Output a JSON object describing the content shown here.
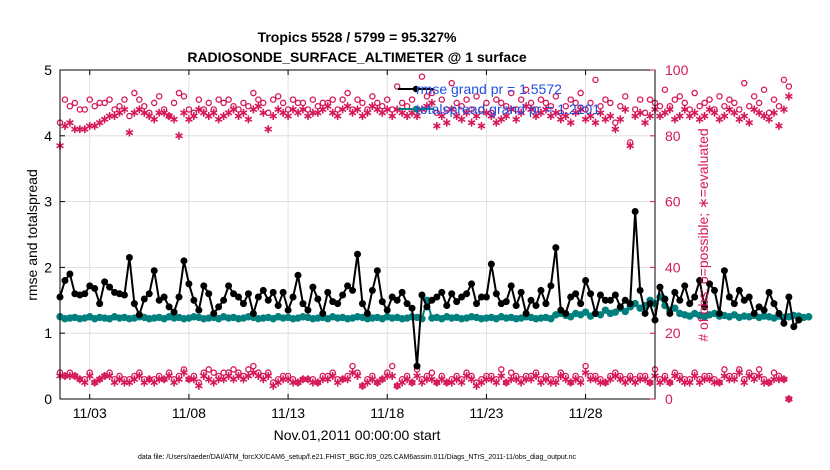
{
  "chart_data": {
    "type": "line",
    "title": "Tropics 5528 / 5799 = 95.327%",
    "subtitle": "RADIOSONDE_SURFACE_ALTIMETER @ 1 surface",
    "xlabel": "Nov.01,2011 00:00:00 start",
    "ylabel_left": "rmse and totalspread",
    "ylabel_right": "# of obs: o=possible; ∗=evaluated",
    "footer": "data file: /Users/raeder/DAI/ATM_forcXX/CAM6_setup/f.e21.FHIST_BGC.f09_025.CAM6assim.011/Diags_NTrS_2011-11/obs_diag_output.nc",
    "xlim": [
      1.0,
      31.0
    ],
    "ylim_left": [
      0,
      5
    ],
    "ylim_right": [
      0,
      100
    ],
    "x_ticks": [
      2.5,
      7.5,
      12.5,
      17.5,
      22.5,
      27.5
    ],
    "x_tick_labels": [
      "11/03",
      "11/08",
      "11/13",
      "11/18",
      "11/23",
      "11/28"
    ],
    "y_left_ticks": [
      "0",
      "1",
      "2",
      "3",
      "4",
      "5"
    ],
    "y_right_ticks": [
      "0",
      "20",
      "40",
      "60",
      "80",
      "100"
    ],
    "colors": {
      "rmse": "#000000",
      "spread": "#00807f",
      "obs": "#d6185a",
      "legend_text": "#1f4fe0"
    },
    "legend": [
      {
        "name": "rmse grand pr = 1.5572",
        "color": "#000000"
      },
      {
        "name": "totalspread grand pr = 1.2201",
        "color": "#00807f"
      }
    ],
    "series": [
      {
        "name": "rmse",
        "axis": "left",
        "x_start": 1.0,
        "x_step": 0.25,
        "values": [
          1.55,
          1.8,
          1.9,
          1.6,
          1.58,
          1.6,
          1.72,
          1.68,
          1.45,
          1.78,
          1.7,
          1.62,
          1.6,
          1.58,
          2.15,
          1.45,
          1.28,
          1.52,
          1.6,
          1.95,
          1.5,
          1.55,
          1.4,
          1.32,
          1.55,
          2.1,
          1.75,
          1.5,
          1.35,
          1.72,
          1.6,
          1.3,
          1.4,
          1.5,
          1.72,
          1.6,
          1.55,
          1.45,
          1.6,
          1.3,
          1.55,
          1.65,
          1.5,
          1.62,
          1.42,
          1.62,
          1.35,
          1.55,
          1.88,
          1.45,
          1.35,
          1.7,
          1.52,
          1.3,
          1.62,
          1.48,
          1.45,
          1.58,
          1.72,
          1.65,
          2.2,
          1.45,
          1.3,
          1.65,
          1.95,
          1.48,
          1.35,
          1.55,
          1.5,
          1.62,
          1.45,
          1.38,
          0.5,
          1.58,
          1.4,
          1.5,
          1.55,
          1.62,
          1.42,
          1.6,
          1.48,
          1.55,
          1.6,
          1.75,
          1.45,
          1.55,
          1.55,
          2.05,
          1.6,
          1.45,
          1.48,
          1.72,
          1.42,
          1.62,
          1.3,
          1.5,
          1.42,
          1.65,
          1.45,
          1.72,
          2.3,
          1.35,
          1.3,
          1.55,
          1.6,
          1.45,
          1.8,
          1.6,
          1.3,
          1.58,
          1.5,
          1.5,
          1.58,
          1.4,
          1.5,
          1.45,
          2.85,
          1.65,
          1.3,
          1.45,
          1.2,
          1.7,
          1.52,
          1.3,
          1.62,
          1.5,
          1.72,
          1.45,
          1.55,
          1.8,
          1.4,
          1.75,
          1.65,
          1.3,
          1.95,
          1.55,
          1.45,
          1.65,
          1.5,
          1.55,
          1.3,
          1.4,
          1.35,
          1.62,
          1.45,
          1.3,
          1.15,
          1.55,
          1.1,
          1.2
        ]
      },
      {
        "name": "totalspread",
        "axis": "left",
        "x_start": 1.0,
        "x_step": 0.25,
        "values": [
          1.25,
          1.22,
          1.23,
          1.24,
          1.22,
          1.23,
          1.25,
          1.22,
          1.24,
          1.23,
          1.22,
          1.25,
          1.23,
          1.24,
          1.22,
          1.23,
          1.25,
          1.24,
          1.22,
          1.23,
          1.24,
          1.22,
          1.25,
          1.23,
          1.24,
          1.22,
          1.23,
          1.25,
          1.24,
          1.22,
          1.23,
          1.24,
          1.22,
          1.25,
          1.23,
          1.24,
          1.22,
          1.23,
          1.25,
          1.24,
          1.22,
          1.23,
          1.24,
          1.22,
          1.25,
          1.23,
          1.24,
          1.22,
          1.23,
          1.25,
          1.24,
          1.22,
          1.23,
          1.24,
          1.22,
          1.25,
          1.23,
          1.24,
          1.22,
          1.23,
          1.25,
          1.24,
          1.22,
          1.23,
          1.24,
          1.22,
          1.25,
          1.23,
          1.24,
          1.22,
          1.23,
          1.25,
          1.24,
          1.22,
          1.5,
          1.23,
          1.24,
          1.22,
          1.25,
          1.23,
          1.24,
          1.22,
          1.23,
          1.25,
          1.24,
          1.22,
          1.23,
          1.24,
          1.22,
          1.25,
          1.23,
          1.24,
          1.22,
          1.23,
          1.25,
          1.24,
          1.22,
          1.23,
          1.24,
          1.22,
          1.28,
          1.3,
          1.27,
          1.25,
          1.3,
          1.28,
          1.32,
          1.26,
          1.3,
          1.28,
          1.35,
          1.3,
          1.32,
          1.38,
          1.33,
          1.4,
          1.45,
          1.38,
          1.42,
          1.5,
          1.45,
          1.55,
          1.42,
          1.35,
          1.38,
          1.3,
          1.28,
          1.26,
          1.3,
          1.27,
          1.25,
          1.28,
          1.3,
          1.26,
          1.27,
          1.25,
          1.28,
          1.24,
          1.26,
          1.25,
          1.27,
          1.24,
          1.26,
          1.25,
          1.23,
          1.26,
          1.24,
          1.25,
          1.27,
          1.26,
          1.24,
          1.25
        ]
      },
      {
        "name": "obs possible",
        "axis": "right",
        "marker": "circle",
        "x_start": 1.0,
        "x_step": 0.25,
        "values": [
          84,
          91,
          89,
          90,
          88,
          88,
          91,
          89,
          90,
          90,
          91,
          88,
          89,
          91,
          86,
          93,
          91,
          89,
          87,
          90,
          92,
          88,
          86,
          90,
          93,
          92,
          88,
          87,
          91,
          88,
          90,
          88,
          91,
          90,
          91,
          89,
          88,
          90,
          89,
          93,
          91,
          90,
          87,
          91,
          92,
          90,
          88,
          91,
          90,
          90,
          88,
          91,
          89,
          90,
          90,
          91,
          88,
          91,
          93,
          88,
          91,
          90,
          88,
          92,
          90,
          89,
          91,
          88,
          95,
          90,
          89,
          91,
          88,
          98,
          92,
          93,
          87,
          91,
          88,
          96,
          90,
          89,
          91,
          88,
          92,
          88,
          90,
          87,
          91,
          90,
          89,
          93,
          88,
          91,
          94,
          90,
          88,
          91,
          90,
          89,
          92,
          87,
          89,
          91,
          90,
          93,
          88,
          90,
          97,
          89,
          91,
          90,
          84,
          89,
          92,
          78,
          88,
          91,
          87,
          91,
          90,
          89,
          94,
          89,
          91,
          92,
          90,
          88,
          93,
          89,
          90,
          91,
          88,
          92,
          89,
          91,
          90,
          88,
          96,
          89,
          92,
          90,
          94,
          87,
          91,
          89,
          97,
          95
        ]
      },
      {
        "name": "obs evaluated",
        "axis": "right",
        "marker": "star",
        "x_start": 1.0,
        "x_step": 0.25,
        "values": [
          77,
          83,
          84,
          82,
          82,
          82,
          83,
          83,
          84,
          85,
          86,
          86,
          87,
          88,
          81,
          87,
          88,
          87,
          86,
          85,
          87,
          87,
          86,
          85,
          80,
          87,
          85,
          86,
          88,
          87,
          86,
          87,
          85,
          86,
          87,
          88,
          86,
          87,
          85,
          88,
          89,
          87,
          82,
          86,
          88,
          87,
          86,
          88,
          87,
          88,
          86,
          87,
          87,
          88,
          89,
          87,
          86,
          88,
          89,
          87,
          88,
          86,
          87,
          89,
          88,
          87,
          88,
          86,
          88,
          87,
          86,
          87,
          86,
          88,
          89,
          90,
          83,
          86,
          84,
          88,
          86,
          85,
          87,
          84,
          86,
          83,
          87,
          86,
          84,
          85,
          86,
          88,
          85,
          87,
          89,
          88,
          86,
          87,
          88,
          86,
          87,
          85,
          86,
          84,
          87,
          88,
          85,
          86,
          84,
          87,
          85,
          86,
          82,
          85,
          88,
          77,
          86,
          87,
          84,
          86,
          88,
          86,
          87,
          88,
          85,
          86,
          88,
          86,
          87,
          85,
          86,
          88,
          87,
          85,
          86,
          88,
          87,
          85,
          86,
          84,
          88,
          87,
          86,
          85,
          87,
          83,
          88,
          92
        ]
      },
      {
        "name": "obs possible (low)",
        "axis": "right",
        "marker": "circle",
        "x_start": 1.0,
        "x_step": 0.25,
        "values": [
          8,
          7,
          8,
          7,
          6,
          6,
          8,
          5,
          6,
          7,
          8,
          6,
          7,
          6,
          6,
          7,
          8,
          6,
          6,
          6,
          7,
          6,
          8,
          6,
          7,
          9,
          6,
          7,
          5,
          8,
          9,
          8,
          7,
          8,
          8,
          9,
          8,
          7,
          9,
          10,
          8,
          7,
          8,
          5,
          6,
          7,
          7,
          6,
          5,
          6,
          6,
          6,
          5,
          7,
          7,
          8,
          6,
          6,
          7,
          10,
          8,
          4,
          6,
          7,
          5,
          6,
          8,
          10,
          4,
          6,
          7,
          5,
          9,
          6,
          7,
          8,
          5,
          7,
          5,
          6,
          7,
          6,
          8,
          7,
          5,
          6,
          7,
          7,
          6,
          9,
          5,
          8,
          7,
          6,
          7,
          7,
          8,
          6,
          7,
          6,
          6,
          8,
          7,
          5,
          7,
          6,
          10,
          7,
          7,
          6,
          5,
          7,
          8,
          7,
          6,
          7,
          6,
          7,
          7,
          5,
          9,
          6,
          7,
          5,
          8,
          7,
          6,
          6,
          8,
          6,
          7,
          7,
          6,
          5,
          9,
          7,
          7,
          9,
          6,
          8,
          7,
          9,
          6,
          5,
          8,
          7,
          6,
          0
        ]
      },
      {
        "name": "obs evaluated (low)",
        "axis": "right",
        "marker": "star",
        "x_start": 1.0,
        "x_step": 0.25,
        "values": [
          7,
          7,
          7,
          7,
          6,
          5,
          7,
          5,
          6,
          7,
          7,
          5,
          6,
          5,
          5,
          6,
          7,
          5,
          6,
          5,
          6,
          6,
          7,
          5,
          6,
          8,
          6,
          6,
          4,
          7,
          6,
          5,
          6,
          6,
          7,
          6,
          7,
          6,
          7,
          8,
          7,
          6,
          7,
          4,
          5,
          6,
          6,
          5,
          5,
          6,
          6,
          5,
          5,
          6,
          6,
          7,
          5,
          6,
          6,
          8,
          7,
          4,
          5,
          6,
          5,
          6,
          7,
          7,
          4,
          5,
          6,
          5,
          7,
          5,
          6,
          6,
          5,
          6,
          5,
          5,
          6,
          5,
          7,
          6,
          4,
          5,
          6,
          6,
          5,
          7,
          5,
          6,
          6,
          5,
          6,
          6,
          7,
          5,
          6,
          5,
          5,
          7,
          6,
          5,
          6,
          5,
          8,
          6,
          6,
          5,
          5,
          6,
          7,
          6,
          5,
          6,
          5,
          6,
          6,
          5,
          7,
          5,
          6,
          5,
          7,
          6,
          5,
          5,
          7,
          5,
          6,
          6,
          5,
          5,
          7,
          6,
          6,
          8,
          5,
          7,
          6,
          7,
          5,
          5,
          6,
          6,
          6,
          0
        ]
      }
    ]
  }
}
